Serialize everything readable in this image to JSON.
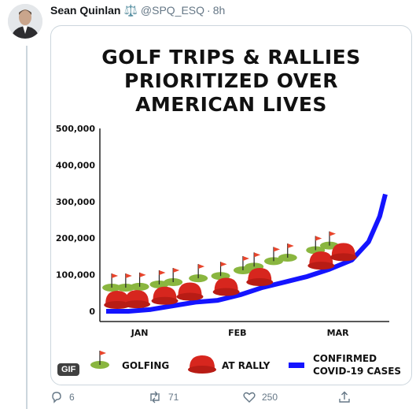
{
  "tweet": {
    "author_name": "Sean Quinlan",
    "author_badge": "⚖️",
    "handle": "@SPQ_ESQ",
    "separator": "·",
    "time": "8h"
  },
  "media": {
    "gif_label": "GIF",
    "title_lines": [
      "GOLF TRIPS & RALLIES",
      "PRIORITIZED OVER",
      "AMERICAN LIVES"
    ]
  },
  "chart_data": {
    "type": "line",
    "title": "GOLF TRIPS & RALLIES PRIORITIZED OVER AMERICAN LIVES",
    "x_ticks": [
      "JAN",
      "FEB",
      "MAR"
    ],
    "y_ticks": [
      "0",
      "100,000",
      "200,000",
      "300,000",
      "400,000",
      "500,000"
    ],
    "ylim": [
      0,
      500000
    ],
    "series": [
      {
        "name": "CONFIRMED COVID-19 CASES",
        "color": "#1414ff",
        "x": [
          0,
          8,
          16,
          24,
          32,
          40,
          48,
          56,
          64,
          72,
          80,
          88,
          94,
          98,
          100
        ],
        "values": [
          0,
          0,
          5000,
          15000,
          25000,
          30000,
          45000,
          65000,
          80000,
          95000,
          115000,
          140000,
          190000,
          260000,
          320000
        ]
      }
    ],
    "golfing_x": [
      2,
      7,
      12,
      19,
      24,
      33,
      41,
      49,
      53,
      60,
      65,
      75,
      80
    ],
    "rally_x": [
      4,
      11,
      21,
      30,
      43,
      55,
      77,
      85
    ],
    "legend": [
      "GOLFING",
      "AT RALLY",
      "CONFIRMED COVID-19 CASES"
    ],
    "legend_position": "bottom"
  },
  "legend": {
    "golfing": "GOLFING",
    "rally": "AT RALLY",
    "cases_line1": "CONFIRMED",
    "cases_line2": "COVID-19 CASES"
  },
  "actions": {
    "replies": "6",
    "retweets": "71",
    "likes": "250"
  },
  "colors": {
    "line": "#1414ff",
    "hat": "#d7261e",
    "green": "#8ab63f",
    "flag": "#e8452c"
  }
}
